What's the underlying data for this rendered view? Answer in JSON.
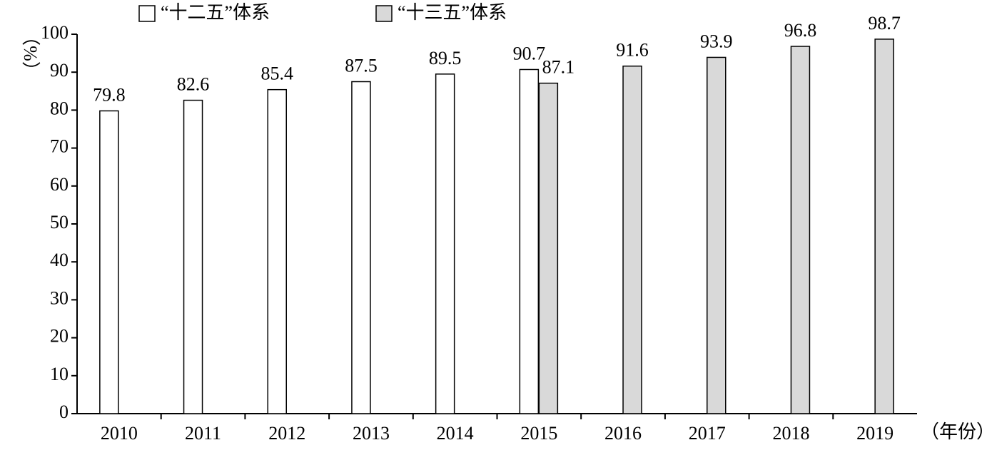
{
  "chart_data": {
    "type": "bar",
    "xlabel": "（年份）",
    "ylabel": "（%）",
    "categories": [
      "2010",
      "2011",
      "2012",
      "2013",
      "2014",
      "2015",
      "2016",
      "2017",
      "2018",
      "2019"
    ],
    "series": [
      {
        "name": "“十二五”体系",
        "color": "#ffffff",
        "values": [
          79.8,
          82.6,
          85.4,
          87.5,
          89.5,
          90.7,
          null,
          null,
          null,
          null
        ]
      },
      {
        "name": "“十三五”体系",
        "color": "#d9d9d9",
        "values": [
          null,
          null,
          null,
          null,
          null,
          87.1,
          91.6,
          93.9,
          96.8,
          98.7
        ]
      }
    ],
    "ylim": [
      0,
      100
    ],
    "yticks": [
      0,
      10,
      20,
      30,
      40,
      50,
      60,
      70,
      80,
      90,
      100
    ],
    "legend": "top"
  }
}
